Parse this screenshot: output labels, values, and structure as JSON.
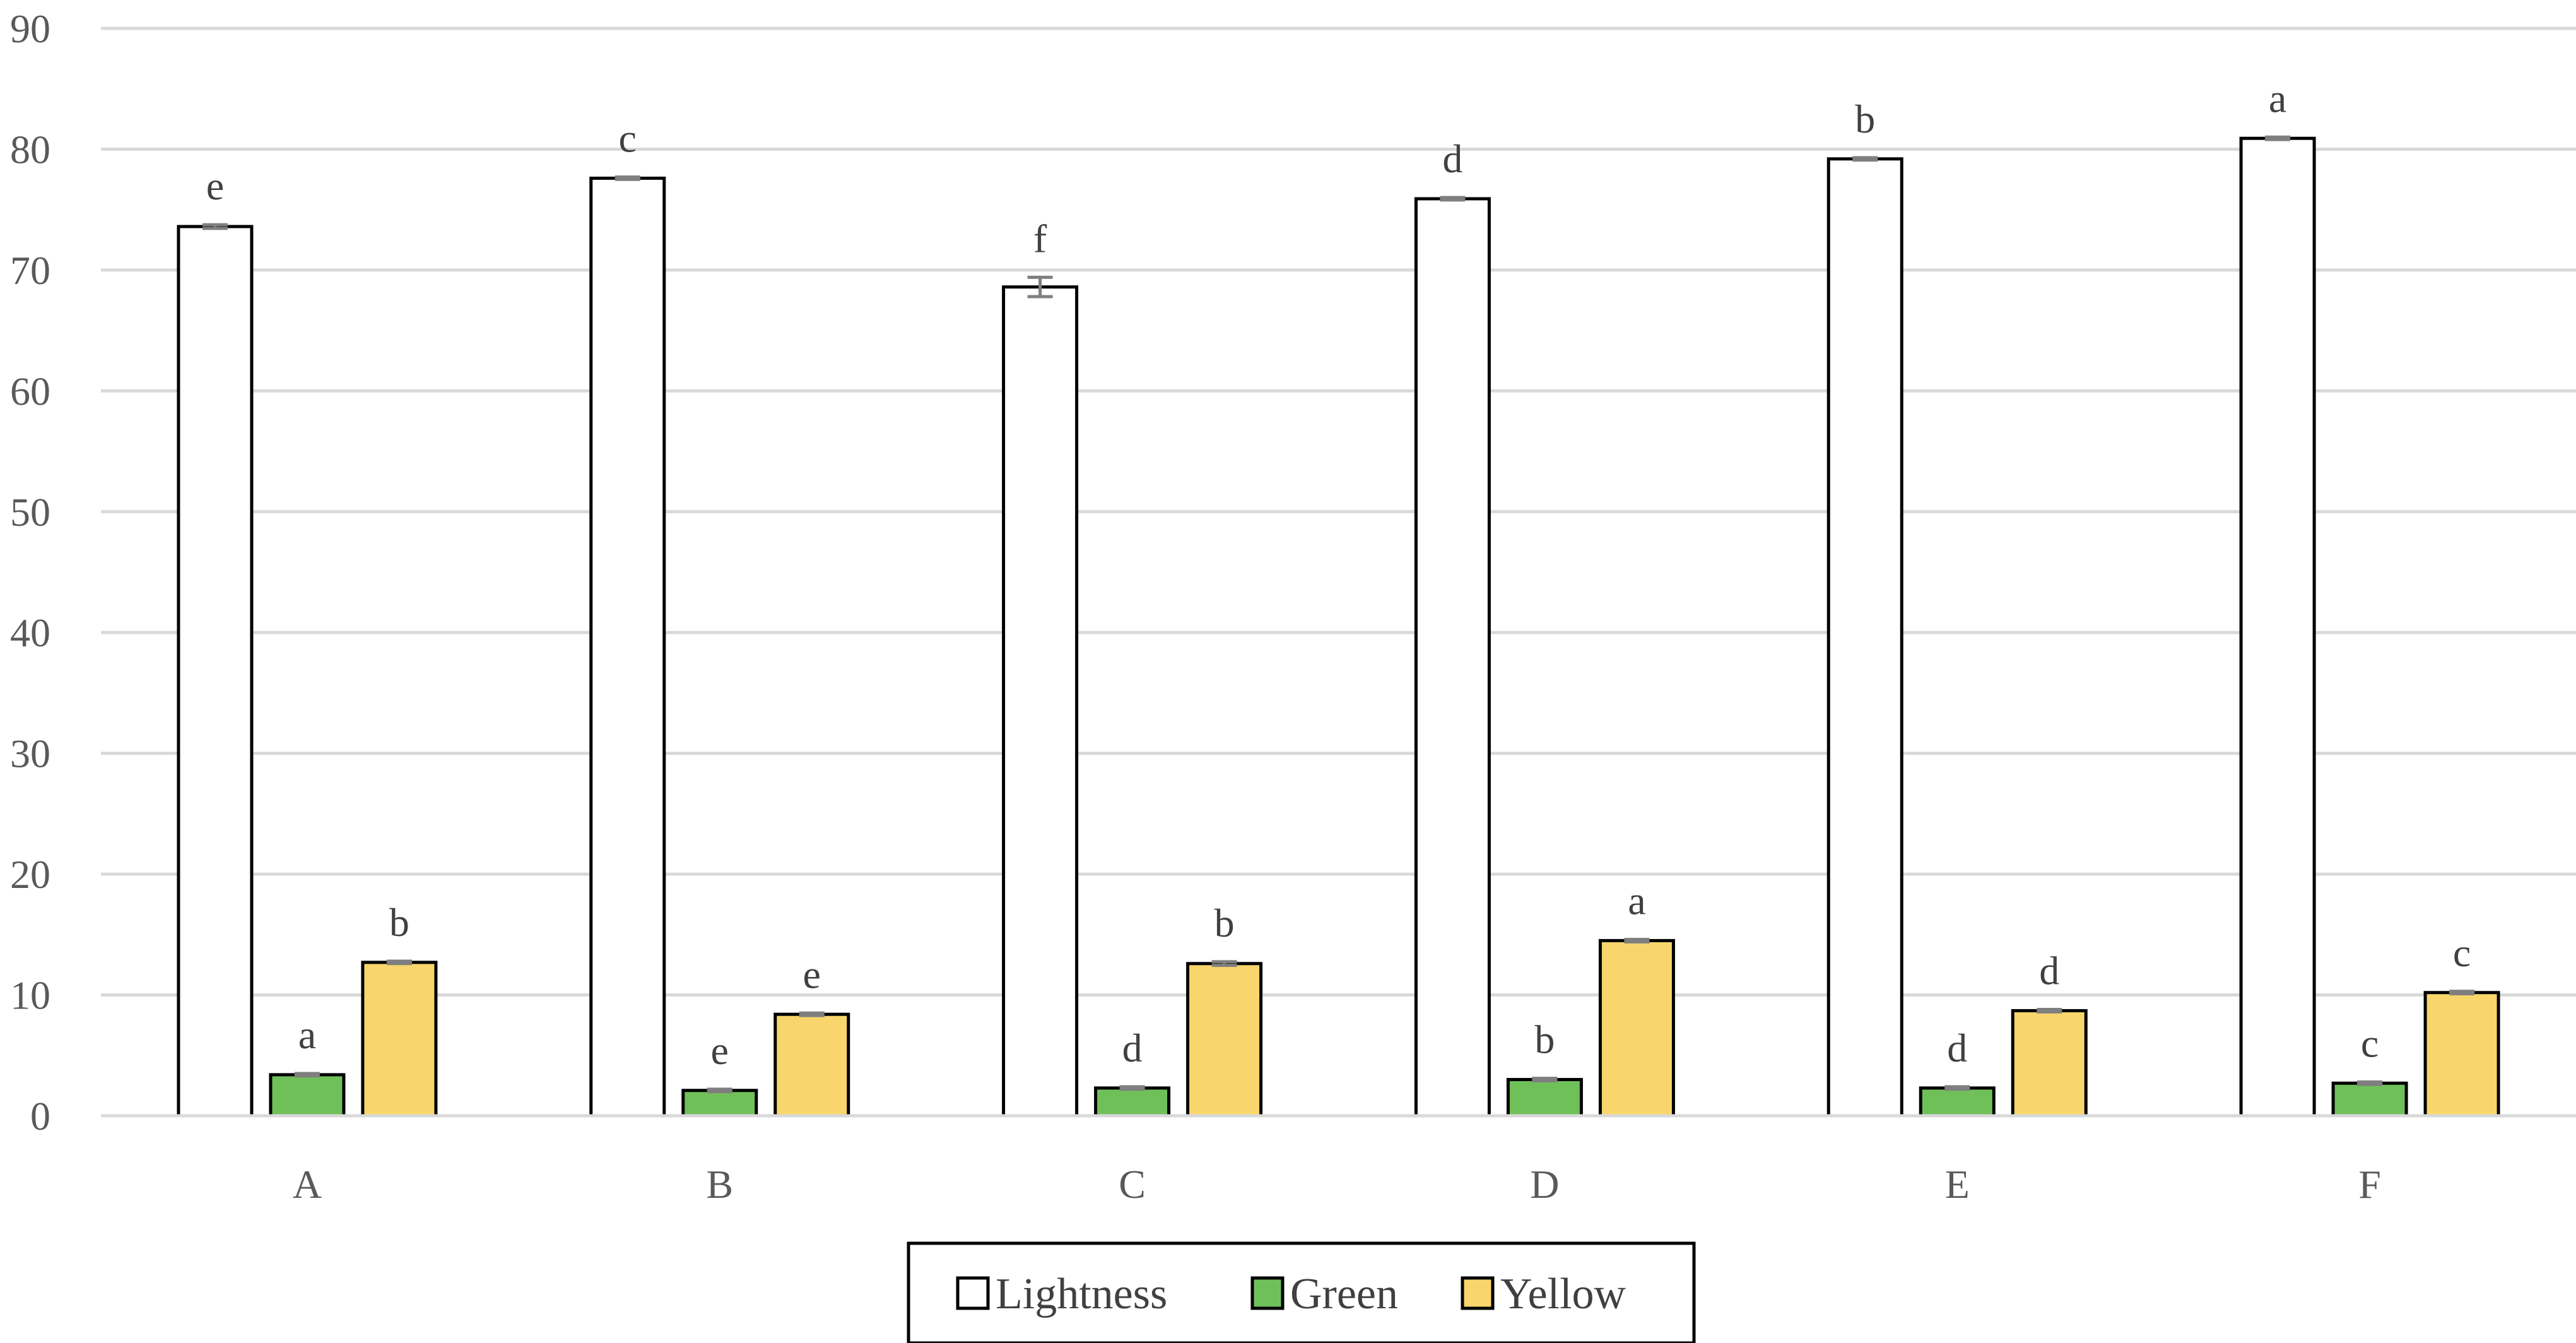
{
  "chart_data": {
    "type": "bar",
    "categories": [
      "A",
      "B",
      "C",
      "D",
      "E",
      "F"
    ],
    "ylim": [
      0,
      90
    ],
    "yticks": [
      0,
      10,
      20,
      30,
      40,
      50,
      60,
      70,
      80,
      90
    ],
    "grid": true,
    "legend_position": "bottom",
    "series": [
      {
        "name": "Lightness",
        "color": "#ffffff",
        "values": [
          73.6,
          77.6,
          68.6,
          75.9,
          79.2,
          80.9
        ],
        "errors": [
          0.15,
          0.1,
          0.8,
          0.1,
          0.1,
          0.1
        ],
        "letters": [
          "e",
          "c",
          "f",
          "d",
          "b",
          "a"
        ]
      },
      {
        "name": "Green",
        "color": "#70c05a",
        "values": [
          3.4,
          2.1,
          2.3,
          3.0,
          2.3,
          2.7
        ],
        "errors": [
          0.1,
          0.1,
          0.1,
          0.1,
          0.1,
          0.1
        ],
        "letters": [
          "a",
          "e",
          "d",
          "b",
          "d",
          "c"
        ]
      },
      {
        "name": "Yellow",
        "color": "#f8d66c",
        "values": [
          12.7,
          8.4,
          12.6,
          14.5,
          8.7,
          10.2
        ],
        "errors": [
          0.1,
          0.1,
          0.15,
          0.1,
          0.1,
          0.1
        ],
        "letters": [
          "b",
          "e",
          "b",
          "a",
          "d",
          "c"
        ]
      }
    ]
  }
}
